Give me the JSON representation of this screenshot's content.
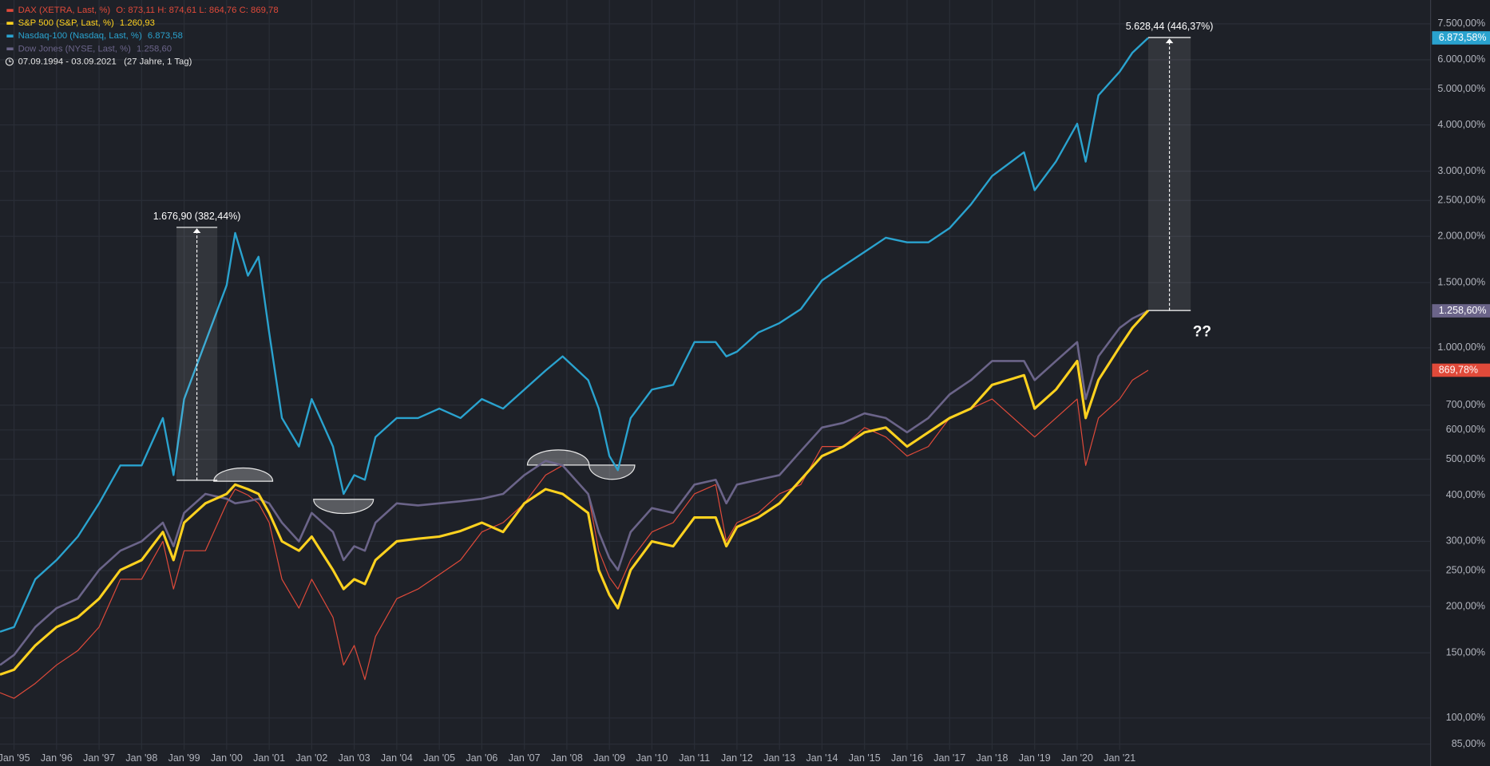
{
  "chart_data": {
    "type": "line",
    "date_range": "07.09.1994 - 03.09.2021   (27 Jahre, 1 Tag)",
    "annotation_text": "??",
    "log_scale": true,
    "grid": true,
    "x": [
      1994.67,
      1995,
      1995.5,
      1996,
      1996.5,
      1997,
      1997.5,
      1998,
      1998.5,
      1998.75,
      1999,
      1999.5,
      2000,
      2000.2,
      2000.5,
      2000.75,
      2001,
      2001.3,
      2001.7,
      2002,
      2002.5,
      2002.75,
      2003,
      2003.25,
      2003.5,
      2004,
      2004.5,
      2005,
      2005.5,
      2006,
      2006.5,
      2007,
      2007.5,
      2007.9,
      2008.5,
      2008.75,
      2009,
      2009.2,
      2009.5,
      2010,
      2010.5,
      2011,
      2011.5,
      2011.75,
      2012,
      2012.5,
      2013,
      2013.5,
      2014,
      2014.5,
      2015,
      2015.5,
      2016,
      2016.5,
      2017,
      2017.5,
      2018,
      2018.75,
      2019,
      2019.5,
      2020,
      2020.2,
      2020.5,
      2021,
      2021.3,
      2021.67
    ],
    "xlim": [
      1994.67,
      2028.3
    ],
    "xticks": [
      {
        "value": 1995,
        "label": "Jan '95"
      },
      {
        "value": 1996,
        "label": "Jan '96"
      },
      {
        "value": 1997,
        "label": "Jan '97"
      },
      {
        "value": 1998,
        "label": "Jan '98"
      },
      {
        "value": 1999,
        "label": "Jan '99"
      },
      {
        "value": 2000,
        "label": "Jan '00"
      },
      {
        "value": 2001,
        "label": "Jan '01"
      },
      {
        "value": 2002,
        "label": "Jan '02"
      },
      {
        "value": 2003,
        "label": "Jan '03"
      },
      {
        "value": 2004,
        "label": "Jan '04"
      },
      {
        "value": 2005,
        "label": "Jan '05"
      },
      {
        "value": 2006,
        "label": "Jan '06"
      },
      {
        "value": 2007,
        "label": "Jan '07"
      },
      {
        "value": 2008,
        "label": "Jan '08"
      },
      {
        "value": 2009,
        "label": "Jan '09"
      },
      {
        "value": 2010,
        "label": "Jan '10"
      },
      {
        "value": 2011,
        "label": "Jan '11"
      },
      {
        "value": 2012,
        "label": "Jan '12"
      },
      {
        "value": 2013,
        "label": "Jan '13"
      },
      {
        "value": 2014,
        "label": "Jan '14"
      },
      {
        "value": 2015,
        "label": "Jan '15"
      },
      {
        "value": 2016,
        "label": "Jan '16"
      },
      {
        "value": 2017,
        "label": "Jan '17"
      },
      {
        "value": 2018,
        "label": "Jan '18"
      },
      {
        "value": 2019,
        "label": "Jan '19"
      },
      {
        "value": 2020,
        "label": "Jan '20"
      },
      {
        "value": 2021,
        "label": "Jan '21"
      }
    ],
    "ylim": [
      82,
      8700
    ],
    "yticks": [
      {
        "value": 85,
        "label": "85,00%"
      },
      {
        "value": 100,
        "label": "100,00%"
      },
      {
        "value": 150,
        "label": "150,00%"
      },
      {
        "value": 200,
        "label": "200,00%"
      },
      {
        "value": 250,
        "label": "250,00%"
      },
      {
        "value": 300,
        "label": "300,00%"
      },
      {
        "value": 400,
        "label": "400,00%"
      },
      {
        "value": 500,
        "label": "500,00%"
      },
      {
        "value": 600,
        "label": "600,00%"
      },
      {
        "value": 700,
        "label": "700,00%"
      },
      {
        "value": 1000,
        "label": "1.000,00%"
      },
      {
        "value": 1500,
        "label": "1.500,00%"
      },
      {
        "value": 2000,
        "label": "2.000,00%"
      },
      {
        "value": 2500,
        "label": "2.500,00%"
      },
      {
        "value": 3000,
        "label": "3.000,00%"
      },
      {
        "value": 4000,
        "label": "4.000,00%"
      },
      {
        "value": 5000,
        "label": "5.000,00%"
      },
      {
        "value": 6000,
        "label": "6.000,00%"
      },
      {
        "value": 7500,
        "label": "7.500,00%"
      }
    ],
    "series": [
      {
        "name": "DAX (XETRA, Last, %)",
        "legend_values": "O: 873,11  H: 874,61  L: 864,76  C: 869,78",
        "color": "#e04a3a",
        "width": 1,
        "last_label": "869,78%",
        "values": [
          117,
          113,
          124,
          139,
          152,
          176,
          237,
          237,
          300,
          223,
          283,
          283,
          380,
          415,
          400,
          380,
          337,
          237,
          198,
          237,
          187,
          139,
          157,
          127,
          166,
          210,
          223,
          244,
          267,
          318,
          337,
          380,
          453,
          481,
          403,
          283,
          240,
          223,
          267,
          318,
          337,
          403,
          427,
          300,
          337,
          358,
          403,
          427,
          541,
          541,
          609,
          574,
          510,
          541,
          646,
          685,
          727,
          609,
          574,
          646,
          727,
          481,
          646,
          727,
          818,
          869.78
        ]
      },
      {
        "name": "Dow Jones (NYSE, Last, %)",
        "legend_values": "1.258,60",
        "color": "#6b6489",
        "width": 2.2,
        "last_label": "1.258,60%",
        "values": [
          139,
          148,
          176,
          198,
          210,
          251,
          283,
          300,
          337,
          291,
          358,
          403,
          391,
          380,
          385,
          391,
          380,
          337,
          300,
          358,
          318,
          267,
          291,
          283,
          337,
          380,
          375,
          380,
          385,
          391,
          403,
          453,
          495,
          481,
          403,
          318,
          270,
          251,
          318,
          369,
          358,
          427,
          440,
          380,
          427,
          440,
          453,
          526,
          609,
          627,
          665,
          646,
          591,
          646,
          748,
          818,
          921,
          921,
          818,
          921,
          1036,
          727,
          948,
          1132,
          1200,
          1258.6
        ]
      },
      {
        "name": "S&P 500 (S&P, Last, %)",
        "legend_values": "1.260,93",
        "color": "#ffd21f",
        "width": 2.6,
        "values": [
          131,
          135,
          157,
          176,
          187,
          210,
          251,
          267,
          318,
          267,
          337,
          380,
          403,
          427,
          415,
          403,
          358,
          300,
          283,
          309,
          251,
          223,
          237,
          230,
          267,
          300,
          305,
          309,
          320,
          337,
          318,
          380,
          415,
          403,
          358,
          251,
          215,
          198,
          251,
          300,
          291,
          348,
          348,
          291,
          328,
          348,
          380,
          440,
          510,
          541,
          591,
          609,
          541,
          591,
          646,
          685,
          794,
          843,
          685,
          771,
          921,
          646,
          818,
          1006,
          1132,
          1260.93
        ]
      },
      {
        "name": "Nasdaq-100 (Nasdaq, Last, %)",
        "legend_values": "6.873,58",
        "color": "#2aa3cf",
        "width": 2,
        "last_label": "6.873,58%",
        "values": [
          171,
          176,
          237,
          267,
          309,
          380,
          481,
          481,
          646,
          453,
          727,
          1036,
          1476,
          2043,
          1566,
          1762,
          1099,
          646,
          541,
          727,
          541,
          403,
          453,
          440,
          574,
          646,
          646,
          685,
          646,
          727,
          685,
          771,
          868,
          948,
          818,
          685,
          510,
          467,
          646,
          771,
          794,
          1036,
          1036,
          948,
          976,
          1099,
          1166,
          1271,
          1521,
          1663,
          1815,
          1983,
          1927,
          1927,
          2105,
          2438,
          2911,
          3374,
          2665,
          3183,
          4030,
          3183,
          4810,
          5572,
          6271,
          6873.58
        ]
      }
    ],
    "legend_order": [
      0,
      2,
      3,
      1
    ],
    "annotations": [
      {
        "label": "1.676,90 (382,44%)",
        "x": [
          1998.82,
          1999.78
        ],
        "y": [
          438.5,
          2115.4
        ]
      },
      {
        "label": "5.628,44 (446,37%)",
        "x": [
          2021.67,
          2022.67
        ],
        "y": [
          1260.93,
          6889.37
        ]
      }
    ]
  }
}
